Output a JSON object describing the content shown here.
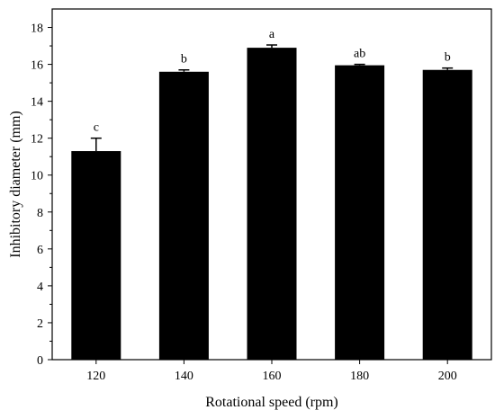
{
  "chart_data": {
    "type": "bar",
    "categories": [
      "120",
      "140",
      "160",
      "180",
      "200"
    ],
    "values": [
      11.3,
      15.6,
      16.9,
      15.95,
      15.7
    ],
    "errors": [
      0.7,
      0.1,
      0.15,
      0.05,
      0.1
    ],
    "significance": [
      "c",
      "b",
      "a",
      "ab",
      "b"
    ],
    "xlabel": "Rotational speed (rpm)",
    "ylabel": "Inhibitory diameter (mm)",
    "ylim": [
      0,
      19
    ],
    "yticks": [
      "0",
      "2",
      "4",
      "6",
      "8",
      "10",
      "12",
      "14",
      "16",
      "18"
    ],
    "grid": false,
    "bar_color": "#000000"
  }
}
